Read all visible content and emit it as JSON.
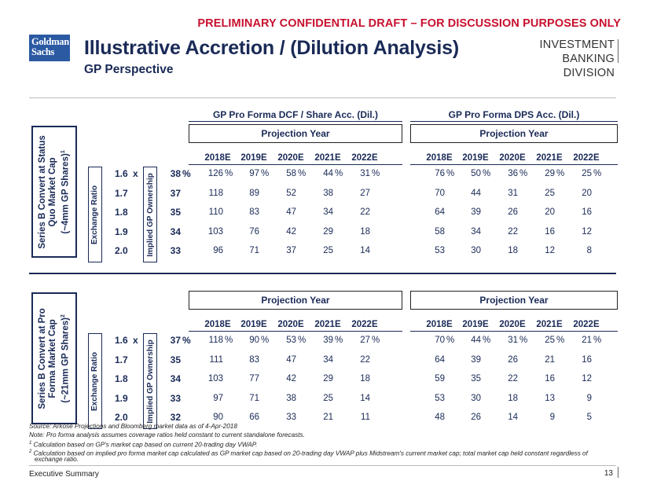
{
  "header": {
    "draft_notice": "PRELIMINARY CONFIDENTIAL DRAFT – FOR DISCUSSION PURPOSES ONLY",
    "logo_line1": "Goldman",
    "logo_line2": "Sachs",
    "title": "Illustrative Accretion / (Dilution Analysis)",
    "subtitle": "GP Perspective",
    "division_line1": "INVESTMENT BANKING",
    "division_line2": "DIVISION"
  },
  "columns": {
    "group1": "GP Pro Forma DCF / Share Acc. (Dil.)",
    "group2": "GP Pro Forma DPS Acc. (Dil.)",
    "projection_label": "Projection Year",
    "years": [
      "2018E",
      "2019E",
      "2020E",
      "2021E",
      "2022E"
    ],
    "exchange_ratio_label": "Exchange Ratio",
    "ownership_label": "Implied GP Ownership"
  },
  "panels": [
    {
      "side_line1": "Series B Convert at Status",
      "side_line2": "Quo Market Cap",
      "side_line3": "(~4mm GP Shares)",
      "side_sup": "1",
      "rows": [
        {
          "ratio": "1.6",
          "x": "x",
          "own": "38",
          "pct": "%",
          "dcf": [
            "126",
            "97",
            "58",
            "44",
            "31"
          ],
          "dps": [
            "76",
            "50",
            "36",
            "29",
            "25"
          ]
        },
        {
          "ratio": "1.7",
          "own": "37",
          "dcf": [
            "118",
            "89",
            "52",
            "38",
            "27"
          ],
          "dps": [
            "70",
            "44",
            "31",
            "25",
            "20"
          ]
        },
        {
          "ratio": "1.8",
          "own": "35",
          "dcf": [
            "110",
            "83",
            "47",
            "34",
            "22"
          ],
          "dps": [
            "64",
            "39",
            "26",
            "20",
            "16"
          ]
        },
        {
          "ratio": "1.9",
          "own": "34",
          "dcf": [
            "103",
            "76",
            "42",
            "29",
            "18"
          ],
          "dps": [
            "58",
            "34",
            "22",
            "16",
            "12"
          ]
        },
        {
          "ratio": "2.0",
          "own": "33",
          "dcf": [
            "96",
            "71",
            "37",
            "25",
            "14"
          ],
          "dps": [
            "53",
            "30",
            "18",
            "12",
            "8"
          ]
        }
      ]
    },
    {
      "side_line1": "Series B Convert at Pro",
      "side_line2": "Forma Market Cap",
      "side_line3": "(~21mm GP Shares)",
      "side_sup": "2",
      "rows": [
        {
          "ratio": "1.6",
          "x": "x",
          "own": "37",
          "pct": "%",
          "dcf": [
            "118",
            "90",
            "53",
            "39",
            "27"
          ],
          "dps": [
            "70",
            "44",
            "31",
            "25",
            "21"
          ]
        },
        {
          "ratio": "1.7",
          "own": "35",
          "dcf": [
            "111",
            "83",
            "47",
            "34",
            "22"
          ],
          "dps": [
            "64",
            "39",
            "26",
            "21",
            "16"
          ]
        },
        {
          "ratio": "1.8",
          "own": "34",
          "dcf": [
            "103",
            "77",
            "42",
            "29",
            "18"
          ],
          "dps": [
            "59",
            "35",
            "22",
            "16",
            "12"
          ]
        },
        {
          "ratio": "1.9",
          "own": "33",
          "dcf": [
            "97",
            "71",
            "38",
            "25",
            "14"
          ],
          "dps": [
            "53",
            "30",
            "18",
            "13",
            "9"
          ]
        },
        {
          "ratio": "2.0",
          "own": "32",
          "dcf": [
            "90",
            "66",
            "33",
            "21",
            "11"
          ],
          "dps": [
            "48",
            "26",
            "14",
            "9",
            "5"
          ]
        }
      ]
    }
  ],
  "percent_sign": "%",
  "footnotes": {
    "source": "Source: Arkose Projections and Bloomberg market data as of 4-Apr-2018",
    "note": "Note: Pro forma analysis assumes coverage ratios held constant to current standalone forecasts.",
    "fn1_mark": "1",
    "fn1": " Calculation based on GP's market cap based on current 20-trading day VWAP.",
    "fn2_mark": "2",
    "fn2": " Calculation based on implied pro forma market cap calculated as GP market cap based on 20-trading day VWAP plus Midstream's current market cap; total market cap held constant regardless of",
    "fn2_cont": "exchange ratio."
  },
  "footer": {
    "section": "Executive Summary",
    "page": "13"
  }
}
